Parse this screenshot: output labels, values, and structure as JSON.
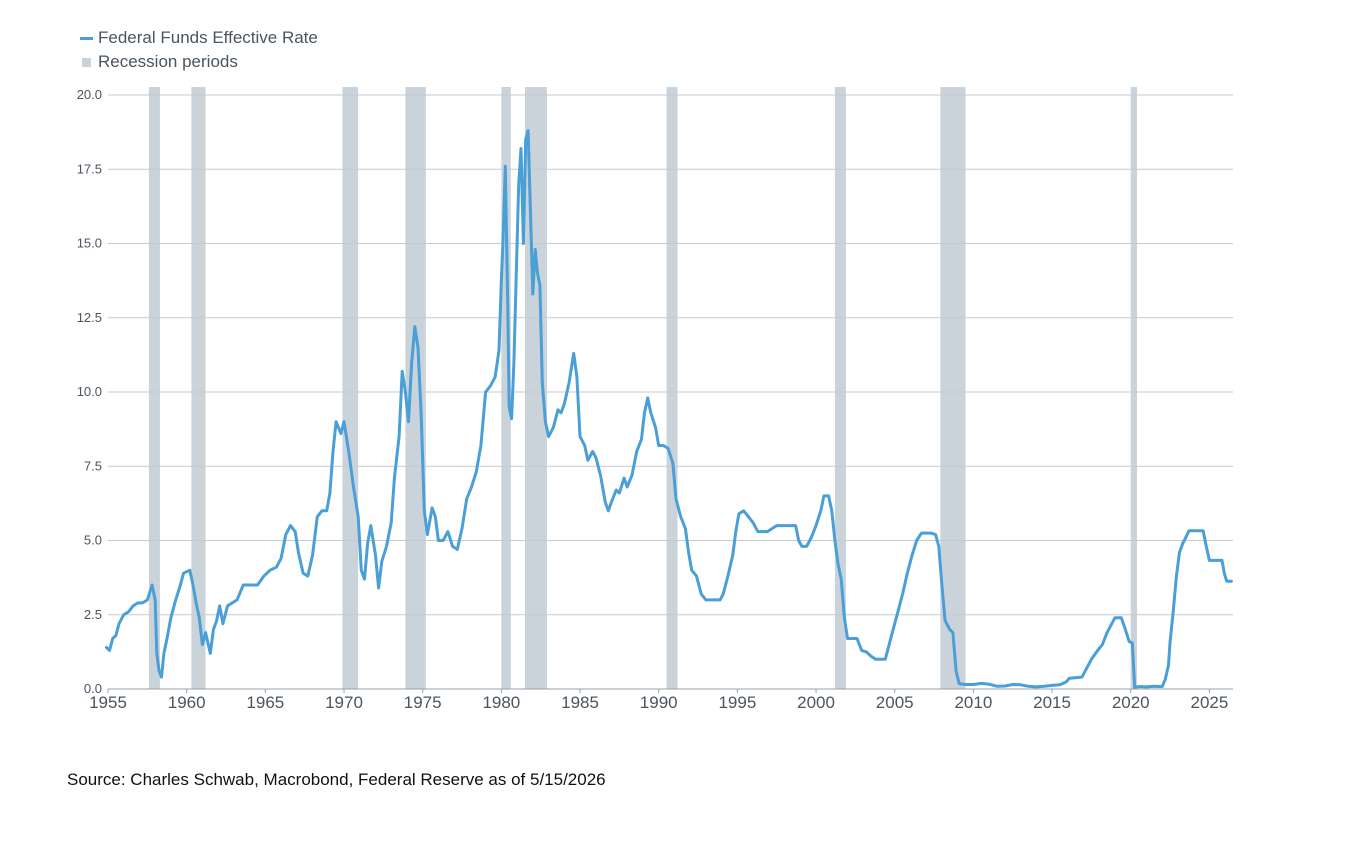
{
  "colors": {
    "rate_line": "#4a9fd6",
    "recession": "#cbd3da",
    "grid": "#c6cacf",
    "text": "#4a5560"
  },
  "legend": [
    {
      "label": "Federal Funds Effective Rate",
      "kind": "line",
      "color": "#4a9fd6"
    },
    {
      "label": "Recession periods",
      "kind": "box",
      "color": "#cbd3da"
    }
  ],
  "source": "Source: Charles Schwab, Macrobond, Federal Reserve as of 5/15/2026",
  "chart_data": {
    "type": "line",
    "title": "",
    "xlabel": "",
    "ylabel": "",
    "xlim": [
      1955,
      2026.5
    ],
    "ylim": [
      0,
      20
    ],
    "grid": true,
    "legend_position": "top-left",
    "x_ticks": [
      "1955",
      "1960",
      "1965",
      "1970",
      "1975",
      "1980",
      "1985",
      "1990",
      "1995",
      "2000",
      "2005",
      "2010",
      "2015",
      "2020",
      "2025"
    ],
    "y_ticks": [
      "0.0",
      "2.5",
      "5.0",
      "7.5",
      "10.0",
      "12.5",
      "15.0",
      "17.5",
      "20.0"
    ],
    "recessions": [
      [
        1957.6,
        1958.3
      ],
      [
        1960.3,
        1961.2
      ],
      [
        1969.9,
        1970.9
      ],
      [
        1973.9,
        1975.2
      ],
      [
        1980.0,
        1980.6
      ],
      [
        1981.5,
        1982.9
      ],
      [
        1990.5,
        1991.2
      ],
      [
        2001.2,
        2001.9
      ],
      [
        2007.9,
        2009.5
      ],
      [
        2020.0,
        2020.4
      ]
    ],
    "series": [
      {
        "name": "Federal Funds Effective Rate",
        "points": [
          [
            1954.9,
            1.4
          ],
          [
            1955.1,
            1.3
          ],
          [
            1955.3,
            1.7
          ],
          [
            1955.5,
            1.8
          ],
          [
            1955.7,
            2.2
          ],
          [
            1956.0,
            2.5
          ],
          [
            1956.3,
            2.6
          ],
          [
            1956.6,
            2.8
          ],
          [
            1956.9,
            2.9
          ],
          [
            1957.2,
            2.9
          ],
          [
            1957.5,
            3.0
          ],
          [
            1957.8,
            3.5
          ],
          [
            1958.0,
            3.0
          ],
          [
            1958.1,
            1.2
          ],
          [
            1958.25,
            0.6
          ],
          [
            1958.4,
            0.4
          ],
          [
            1958.55,
            1.2
          ],
          [
            1958.75,
            1.7
          ],
          [
            1959.0,
            2.4
          ],
          [
            1959.3,
            3.0
          ],
          [
            1959.6,
            3.5
          ],
          [
            1959.8,
            3.9
          ],
          [
            1960.2,
            4.0
          ],
          [
            1960.4,
            3.5
          ],
          [
            1960.6,
            2.9
          ],
          [
            1960.8,
            2.4
          ],
          [
            1961.0,
            1.5
          ],
          [
            1961.2,
            1.9
          ],
          [
            1961.5,
            1.2
          ],
          [
            1961.7,
            2.0
          ],
          [
            1961.9,
            2.3
          ],
          [
            1962.1,
            2.8
          ],
          [
            1962.3,
            2.2
          ],
          [
            1962.6,
            2.8
          ],
          [
            1962.9,
            2.9
          ],
          [
            1963.2,
            3.0
          ],
          [
            1963.6,
            3.5
          ],
          [
            1964.0,
            3.5
          ],
          [
            1964.5,
            3.5
          ],
          [
            1964.9,
            3.8
          ],
          [
            1965.3,
            4.0
          ],
          [
            1965.7,
            4.1
          ],
          [
            1966.0,
            4.4
          ],
          [
            1966.3,
            5.2
          ],
          [
            1966.6,
            5.5
          ],
          [
            1966.9,
            5.3
          ],
          [
            1967.1,
            4.6
          ],
          [
            1967.4,
            3.9
          ],
          [
            1967.7,
            3.8
          ],
          [
            1968.0,
            4.5
          ],
          [
            1968.3,
            5.8
          ],
          [
            1968.6,
            6.0
          ],
          [
            1968.9,
            6.0
          ],
          [
            1969.1,
            6.6
          ],
          [
            1969.3,
            8.0
          ],
          [
            1969.5,
            9.0
          ],
          [
            1969.8,
            8.6
          ],
          [
            1970.0,
            9.0
          ],
          [
            1970.3,
            8.0
          ],
          [
            1970.6,
            6.8
          ],
          [
            1970.9,
            5.8
          ],
          [
            1971.1,
            4.0
          ],
          [
            1971.3,
            3.7
          ],
          [
            1971.5,
            4.9
          ],
          [
            1971.7,
            5.5
          ],
          [
            1972.0,
            4.5
          ],
          [
            1972.2,
            3.4
          ],
          [
            1972.4,
            4.3
          ],
          [
            1972.7,
            4.8
          ],
          [
            1973.0,
            5.6
          ],
          [
            1973.2,
            7.1
          ],
          [
            1973.5,
            8.5
          ],
          [
            1973.7,
            10.7
          ],
          [
            1973.9,
            10.0
          ],
          [
            1974.1,
            9.0
          ],
          [
            1974.3,
            11.0
          ],
          [
            1974.5,
            12.2
          ],
          [
            1974.7,
            11.5
          ],
          [
            1974.9,
            9.3
          ],
          [
            1975.1,
            6.0
          ],
          [
            1975.3,
            5.2
          ],
          [
            1975.6,
            6.1
          ],
          [
            1975.8,
            5.8
          ],
          [
            1976.0,
            5.0
          ],
          [
            1976.3,
            5.0
          ],
          [
            1976.6,
            5.3
          ],
          [
            1976.9,
            4.8
          ],
          [
            1977.2,
            4.7
          ],
          [
            1977.5,
            5.4
          ],
          [
            1977.8,
            6.4
          ],
          [
            1978.1,
            6.8
          ],
          [
            1978.4,
            7.3
          ],
          [
            1978.7,
            8.2
          ],
          [
            1979.0,
            10.0
          ],
          [
            1979.3,
            10.2
          ],
          [
            1979.6,
            10.5
          ],
          [
            1979.85,
            11.4
          ],
          [
            1980.0,
            13.8
          ],
          [
            1980.1,
            15.0
          ],
          [
            1980.25,
            17.6
          ],
          [
            1980.4,
            13.0
          ],
          [
            1980.5,
            9.5
          ],
          [
            1980.65,
            9.1
          ],
          [
            1980.8,
            11.0
          ],
          [
            1980.95,
            14.0
          ],
          [
            1981.1,
            17.0
          ],
          [
            1981.25,
            18.2
          ],
          [
            1981.4,
            15.0
          ],
          [
            1981.55,
            18.5
          ],
          [
            1981.7,
            18.8
          ],
          [
            1981.85,
            16.0
          ],
          [
            1982.0,
            13.3
          ],
          [
            1982.15,
            14.8
          ],
          [
            1982.3,
            14.0
          ],
          [
            1982.45,
            13.6
          ],
          [
            1982.6,
            10.3
          ],
          [
            1982.8,
            9.0
          ],
          [
            1983.0,
            8.5
          ],
          [
            1983.3,
            8.8
          ],
          [
            1983.6,
            9.4
          ],
          [
            1983.8,
            9.3
          ],
          [
            1984.0,
            9.6
          ],
          [
            1984.3,
            10.3
          ],
          [
            1984.6,
            11.3
          ],
          [
            1984.8,
            10.5
          ],
          [
            1985.0,
            8.5
          ],
          [
            1985.3,
            8.2
          ],
          [
            1985.5,
            7.7
          ],
          [
            1985.8,
            8.0
          ],
          [
            1986.0,
            7.8
          ],
          [
            1986.3,
            7.2
          ],
          [
            1986.6,
            6.3
          ],
          [
            1986.8,
            6.0
          ],
          [
            1987.0,
            6.3
          ],
          [
            1987.3,
            6.7
          ],
          [
            1987.5,
            6.6
          ],
          [
            1987.8,
            7.1
          ],
          [
            1988.0,
            6.8
          ],
          [
            1988.3,
            7.2
          ],
          [
            1988.6,
            8.0
          ],
          [
            1988.9,
            8.4
          ],
          [
            1989.1,
            9.3
          ],
          [
            1989.3,
            9.8
          ],
          [
            1989.5,
            9.3
          ],
          [
            1989.8,
            8.8
          ],
          [
            1990.0,
            8.2
          ],
          [
            1990.3,
            8.2
          ],
          [
            1990.6,
            8.1
          ],
          [
            1990.9,
            7.6
          ],
          [
            1991.1,
            6.4
          ],
          [
            1991.4,
            5.8
          ],
          [
            1991.7,
            5.4
          ],
          [
            1991.9,
            4.6
          ],
          [
            1992.1,
            4.0
          ],
          [
            1992.4,
            3.8
          ],
          [
            1992.7,
            3.2
          ],
          [
            1993.0,
            3.0
          ],
          [
            1993.3,
            3.0
          ],
          [
            1993.6,
            3.0
          ],
          [
            1993.9,
            3.0
          ],
          [
            1994.1,
            3.2
          ],
          [
            1994.4,
            3.8
          ],
          [
            1994.7,
            4.5
          ],
          [
            1994.9,
            5.3
          ],
          [
            1995.1,
            5.9
          ],
          [
            1995.4,
            6.0
          ],
          [
            1995.7,
            5.8
          ],
          [
            1996.0,
            5.6
          ],
          [
            1996.3,
            5.3
          ],
          [
            1996.6,
            5.3
          ],
          [
            1996.9,
            5.3
          ],
          [
            1997.2,
            5.4
          ],
          [
            1997.5,
            5.5
          ],
          [
            1997.8,
            5.5
          ],
          [
            1998.1,
            5.5
          ],
          [
            1998.4,
            5.5
          ],
          [
            1998.7,
            5.5
          ],
          [
            1998.9,
            5.0
          ],
          [
            1999.1,
            4.8
          ],
          [
            1999.4,
            4.8
          ],
          [
            1999.7,
            5.1
          ],
          [
            2000.0,
            5.5
          ],
          [
            2000.3,
            6.0
          ],
          [
            2000.5,
            6.5
          ],
          [
            2000.8,
            6.5
          ],
          [
            2001.0,
            6.0
          ],
          [
            2001.2,
            5.0
          ],
          [
            2001.4,
            4.2
          ],
          [
            2001.6,
            3.7
          ],
          [
            2001.8,
            2.4
          ],
          [
            2002.0,
            1.7
          ],
          [
            2002.3,
            1.7
          ],
          [
            2002.6,
            1.7
          ],
          [
            2002.9,
            1.3
          ],
          [
            2003.2,
            1.25
          ],
          [
            2003.5,
            1.1
          ],
          [
            2003.8,
            1.0
          ],
          [
            2004.1,
            1.0
          ],
          [
            2004.4,
            1.0
          ],
          [
            2004.6,
            1.4
          ],
          [
            2004.9,
            2.0
          ],
          [
            2005.2,
            2.6
          ],
          [
            2005.5,
            3.2
          ],
          [
            2005.8,
            3.9
          ],
          [
            2006.1,
            4.5
          ],
          [
            2006.4,
            5.0
          ],
          [
            2006.7,
            5.25
          ],
          [
            2007.0,
            5.25
          ],
          [
            2007.3,
            5.25
          ],
          [
            2007.6,
            5.2
          ],
          [
            2007.8,
            4.8
          ],
          [
            2008.0,
            3.5
          ],
          [
            2008.2,
            2.3
          ],
          [
            2008.5,
            2.0
          ],
          [
            2008.7,
            1.9
          ],
          [
            2008.9,
            0.6
          ],
          [
            2009.1,
            0.18
          ],
          [
            2009.5,
            0.15
          ],
          [
            2010.0,
            0.15
          ],
          [
            2010.5,
            0.19
          ],
          [
            2011.0,
            0.16
          ],
          [
            2011.5,
            0.09
          ],
          [
            2012.0,
            0.1
          ],
          [
            2012.5,
            0.15
          ],
          [
            2013.0,
            0.14
          ],
          [
            2013.5,
            0.09
          ],
          [
            2014.0,
            0.07
          ],
          [
            2014.5,
            0.09
          ],
          [
            2015.0,
            0.12
          ],
          [
            2015.5,
            0.14
          ],
          [
            2015.9,
            0.24
          ],
          [
            2016.1,
            0.36
          ],
          [
            2016.9,
            0.4
          ],
          [
            2017.2,
            0.7
          ],
          [
            2017.5,
            1.0
          ],
          [
            2017.9,
            1.3
          ],
          [
            2018.2,
            1.5
          ],
          [
            2018.5,
            1.9
          ],
          [
            2018.8,
            2.2
          ],
          [
            2019.0,
            2.4
          ],
          [
            2019.4,
            2.4
          ],
          [
            2019.6,
            2.1
          ],
          [
            2019.9,
            1.6
          ],
          [
            2020.1,
            1.55
          ],
          [
            2020.25,
            0.05
          ],
          [
            2020.5,
            0.08
          ],
          [
            2021.0,
            0.07
          ],
          [
            2021.5,
            0.09
          ],
          [
            2022.0,
            0.08
          ],
          [
            2022.2,
            0.33
          ],
          [
            2022.4,
            0.8
          ],
          [
            2022.5,
            1.6
          ],
          [
            2022.7,
            2.6
          ],
          [
            2022.9,
            3.8
          ],
          [
            2023.1,
            4.6
          ],
          [
            2023.3,
            4.9
          ],
          [
            2023.5,
            5.1
          ],
          [
            2023.7,
            5.33
          ],
          [
            2024.6,
            5.33
          ],
          [
            2024.8,
            4.8
          ],
          [
            2025.0,
            4.33
          ],
          [
            2025.8,
            4.33
          ],
          [
            2025.95,
            3.9
          ],
          [
            2026.1,
            3.63
          ],
          [
            2026.4,
            3.63
          ]
        ]
      }
    ]
  }
}
